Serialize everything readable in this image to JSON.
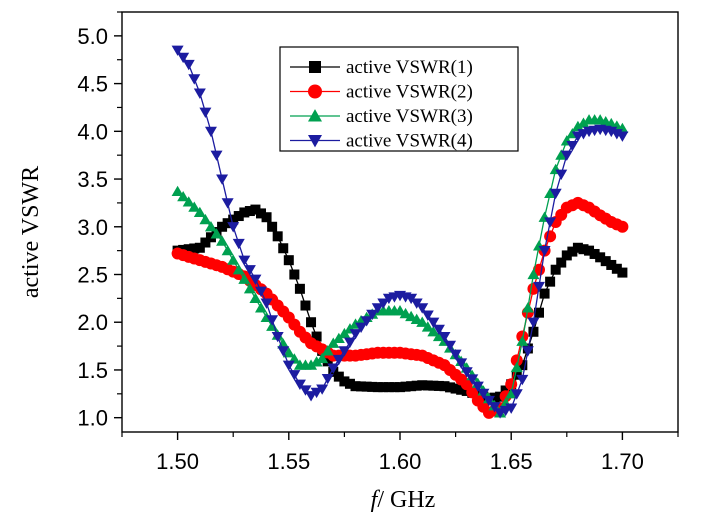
{
  "chart_data": {
    "type": "line",
    "title": "",
    "xlabel_italic": "f",
    "xlabel_rest": "/ GHz",
    "ylabel": "active VSWR",
    "xlim": [
      1.475,
      1.725
    ],
    "ylim": [
      0.85,
      5.25
    ],
    "xticks": [
      1.5,
      1.55,
      1.6,
      1.65,
      1.7
    ],
    "xtick_labels": [
      "1.50",
      "1.55",
      "1.60",
      "1.65",
      "1.70"
    ],
    "yticks": [
      1.0,
      1.5,
      2.0,
      2.5,
      3.0,
      3.5,
      4.0,
      4.5,
      5.0
    ],
    "ytick_labels": [
      "1.0",
      "1.5",
      "2.0",
      "2.5",
      "3.0",
      "3.5",
      "4.0",
      "4.5",
      "5.0"
    ],
    "grid": false,
    "legend_position": "top-center",
    "series": [
      {
        "name": "active VSWR(1)",
        "color": "#000000",
        "marker": "square",
        "x": [
          1.5,
          1.51,
          1.52,
          1.53,
          1.535,
          1.54,
          1.545,
          1.55,
          1.555,
          1.56,
          1.565,
          1.57,
          1.575,
          1.58,
          1.59,
          1.6,
          1.61,
          1.62,
          1.63,
          1.64,
          1.645,
          1.65,
          1.655,
          1.66,
          1.665,
          1.67,
          1.675,
          1.68,
          1.685,
          1.69,
          1.695,
          1.7
        ],
        "y": [
          2.75,
          2.78,
          3.0,
          3.15,
          3.18,
          3.1,
          2.9,
          2.65,
          2.35,
          2.0,
          1.7,
          1.48,
          1.38,
          1.33,
          1.32,
          1.32,
          1.34,
          1.33,
          1.28,
          1.2,
          1.22,
          1.35,
          1.55,
          1.9,
          2.3,
          2.55,
          2.7,
          2.78,
          2.75,
          2.68,
          2.6,
          2.52
        ]
      },
      {
        "name": "active VSWR(2)",
        "color": "#ff0000",
        "marker": "circle",
        "x": [
          1.5,
          1.51,
          1.52,
          1.53,
          1.54,
          1.55,
          1.555,
          1.56,
          1.57,
          1.58,
          1.59,
          1.6,
          1.61,
          1.62,
          1.63,
          1.635,
          1.64,
          1.645,
          1.65,
          1.655,
          1.66,
          1.665,
          1.67,
          1.675,
          1.68,
          1.685,
          1.69,
          1.695,
          1.7
        ],
        "y": [
          2.72,
          2.65,
          2.58,
          2.48,
          2.3,
          2.05,
          1.9,
          1.78,
          1.65,
          1.65,
          1.68,
          1.68,
          1.65,
          1.55,
          1.35,
          1.18,
          1.05,
          1.1,
          1.35,
          1.85,
          2.35,
          2.75,
          3.05,
          3.2,
          3.25,
          3.2,
          3.12,
          3.05,
          3.0
        ]
      },
      {
        "name": "active VSWR(3)",
        "color": "#00a050",
        "marker": "triangle-up",
        "x": [
          1.5,
          1.51,
          1.52,
          1.53,
          1.54,
          1.55,
          1.555,
          1.56,
          1.565,
          1.57,
          1.58,
          1.59,
          1.6,
          1.61,
          1.62,
          1.63,
          1.64,
          1.645,
          1.65,
          1.655,
          1.66,
          1.665,
          1.67,
          1.675,
          1.68,
          1.685,
          1.69,
          1.695,
          1.7
        ],
        "y": [
          3.37,
          3.15,
          2.85,
          2.45,
          2.05,
          1.68,
          1.55,
          1.55,
          1.62,
          1.78,
          1.98,
          2.12,
          2.12,
          2.0,
          1.8,
          1.52,
          1.2,
          1.05,
          1.25,
          1.8,
          2.5,
          3.1,
          3.6,
          3.9,
          4.05,
          4.12,
          4.12,
          4.08,
          4.03
        ]
      },
      {
        "name": "active VSWR(4)",
        "color": "#1c1ca0",
        "marker": "triangle-down",
        "x": [
          1.5,
          1.505,
          1.51,
          1.515,
          1.52,
          1.525,
          1.53,
          1.535,
          1.54,
          1.545,
          1.55,
          1.555,
          1.56,
          1.565,
          1.57,
          1.58,
          1.59,
          1.595,
          1.6,
          1.605,
          1.61,
          1.62,
          1.63,
          1.64,
          1.645,
          1.65,
          1.655,
          1.66,
          1.665,
          1.67,
          1.675,
          1.68,
          1.685,
          1.69,
          1.695,
          1.7
        ],
        "y": [
          4.85,
          4.7,
          4.4,
          4.0,
          3.5,
          3.0,
          2.65,
          2.45,
          2.2,
          1.85,
          1.55,
          1.35,
          1.23,
          1.3,
          1.52,
          1.88,
          2.15,
          2.25,
          2.28,
          2.25,
          2.15,
          1.85,
          1.48,
          1.18,
          1.05,
          1.1,
          1.4,
          2.0,
          2.75,
          3.35,
          3.75,
          3.95,
          4.0,
          4.02,
          4.0,
          3.95
        ]
      }
    ]
  }
}
